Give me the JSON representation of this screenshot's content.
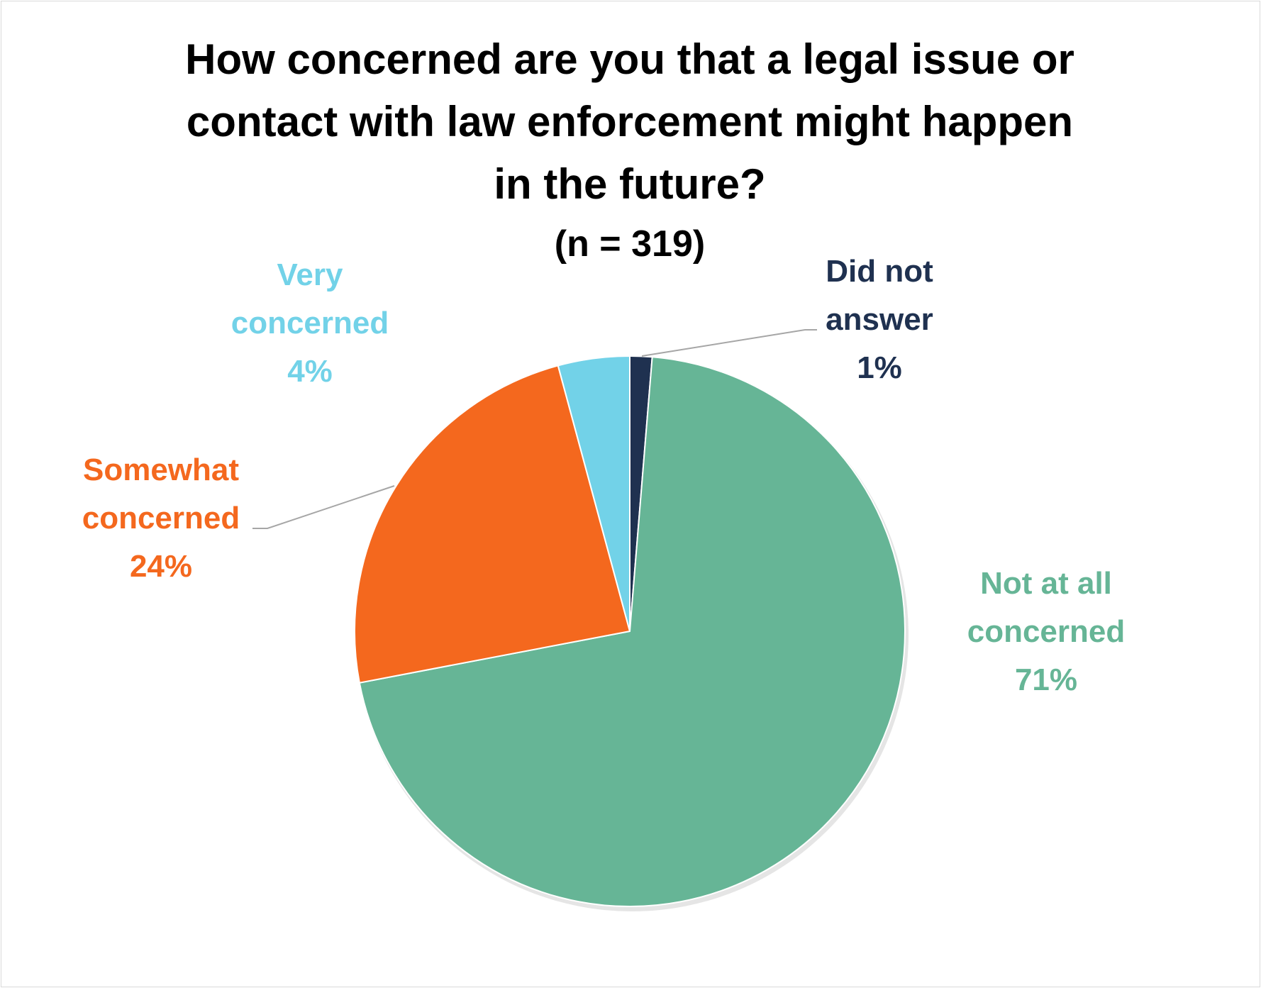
{
  "chart_data": {
    "type": "pie",
    "title_lines": [
      "How concerned are you that a legal issue or",
      "contact with law enforcement might happen",
      "in the future?"
    ],
    "subtitle": "(n = 319)",
    "slices": [
      {
        "key": "did_not_answer",
        "label_lines": [
          "Did not",
          "answer"
        ],
        "value_label": "1%",
        "value": 1.3,
        "color": "#1f3150"
      },
      {
        "key": "not_at_all",
        "label_lines": [
          "Not at all",
          "concerned"
        ],
        "value_label": "71%",
        "value": 70.7,
        "color": "#66b596"
      },
      {
        "key": "somewhat",
        "label_lines": [
          "Somewhat",
          "concerned"
        ],
        "value_label": "24%",
        "value": 23.8,
        "color": "#f4681e"
      },
      {
        "key": "very",
        "label_lines": [
          "Very",
          "concerned"
        ],
        "value_label": "4%",
        "value": 4.2,
        "color": "#72d2e8"
      }
    ],
    "start_angle": "12 o'clock",
    "direction": "clockwise",
    "leader_line_color": "#a6a6a6"
  }
}
